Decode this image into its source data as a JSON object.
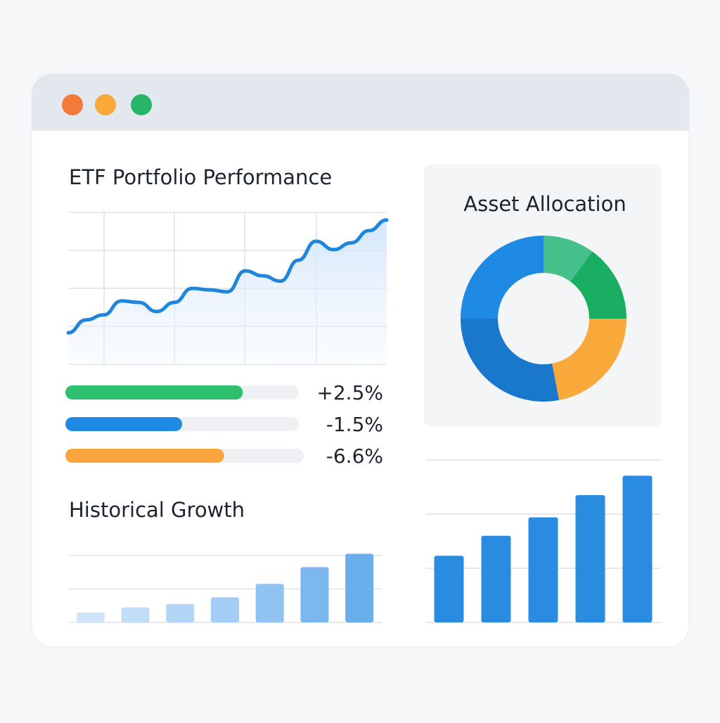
{
  "chart_data": [
    {
      "type": "line",
      "title": "ETF Portfolio Performance",
      "color": "#1f86dc",
      "values": [
        0.83,
        1.17,
        1.3,
        1.67,
        1.63,
        1.39,
        1.63,
        2.0,
        1.96,
        1.91,
        2.46,
        2.33,
        2.19,
        2.74,
        3.24,
        3.02,
        3.2,
        3.52,
        3.8
      ],
      "ylim": [
        0,
        4
      ],
      "yticks": [
        0,
        1,
        2,
        3,
        4
      ],
      "grid": true
    },
    {
      "type": "progress",
      "values": [
        76,
        50,
        68
      ],
      "xlim": [
        0,
        100
      ],
      "colors": [
        "#2fbf71",
        "#1f8ae3",
        "#f9a43c"
      ],
      "labels": [
        "+2.5%",
        "-1.5%",
        "-6.6%"
      ]
    },
    {
      "type": "pie",
      "title": "Asset Allocation",
      "donut": true,
      "values": [
        10,
        15,
        22,
        28,
        25
      ],
      "colors": [
        "#45c08a",
        "#1aae63",
        "#f9a83a",
        "#1a78cc",
        "#1e8ae4"
      ]
    },
    {
      "type": "bar",
      "title": "Historical Growth",
      "values": [
        0.3,
        0.45,
        0.55,
        0.75,
        1.15,
        1.65,
        2.05
      ],
      "colors": [
        "#cfe4f9",
        "#c2ddf7",
        "#b4d6f6",
        "#a3cdf4",
        "#90c2f2",
        "#7db7ef",
        "#6aaeeb"
      ],
      "ylim": [
        0,
        2.1
      ],
      "yticks": [
        0,
        1,
        2
      ],
      "grid": true
    },
    {
      "type": "bar",
      "values": [
        1.23,
        1.6,
        1.94,
        2.35,
        2.71
      ],
      "color": "#2a8ce0",
      "ylim": [
        0,
        3
      ],
      "yticks": [
        0,
        1,
        2,
        3
      ],
      "grid": true
    }
  ]
}
